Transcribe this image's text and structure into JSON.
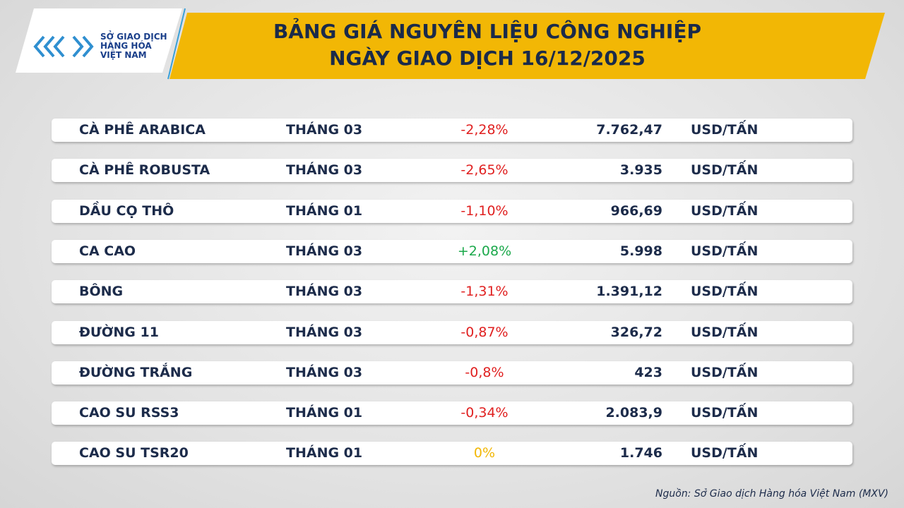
{
  "logo": {
    "lines": [
      "SỞ GIAO DỊCH",
      "HÀNG HÓA",
      "VIỆT NAM"
    ]
  },
  "header": {
    "title": [
      "BẢNG GIÁ NGUYÊN LIỆU CÔNG NGHIỆP",
      "NGÀY GIAO DỊCH 16/12/2025"
    ]
  },
  "table": {
    "rows": [
      [
        "CÀ PHÊ ARABICA",
        "THÁNG 03",
        "-2,28%",
        "7.762,47",
        "USD/TẤN"
      ],
      [
        "CÀ PHÊ ROBUSTA",
        "THÁNG 03",
        "-2,65%",
        "3.935",
        "USD/TẤN"
      ],
      [
        "DẦU CỌ THÔ",
        "THÁNG 01",
        "-1,10%",
        "966,69",
        "USD/TẤN"
      ],
      [
        "CA CAO",
        "THÁNG 03",
        "+2,08%",
        "5.998",
        "USD/TẤN"
      ],
      [
        "BÔNG",
        "THÁNG 03",
        "-1,31%",
        "1.391,12",
        "USD/TẤN"
      ],
      [
        "ĐƯỜNG 11",
        "THÁNG 03",
        "-0,87%",
        "326,72",
        "USD/TẤN"
      ],
      [
        "ĐƯỜNG TRẮNG",
        "THÁNG 03",
        "-0,8%",
        "423",
        "USD/TẤN"
      ],
      [
        "CAO SU RSS3",
        "THÁNG 01",
        "-0,34%",
        "2.083,9",
        "USD/TẤN"
      ],
      [
        "CAO SU TSR20",
        "THÁNG 01",
        "0%",
        "1.746",
        "USD/TẤN"
      ]
    ]
  },
  "source": "Nguồn: Sở Giao dịch Hàng hóa Việt Nam (MXV)"
}
